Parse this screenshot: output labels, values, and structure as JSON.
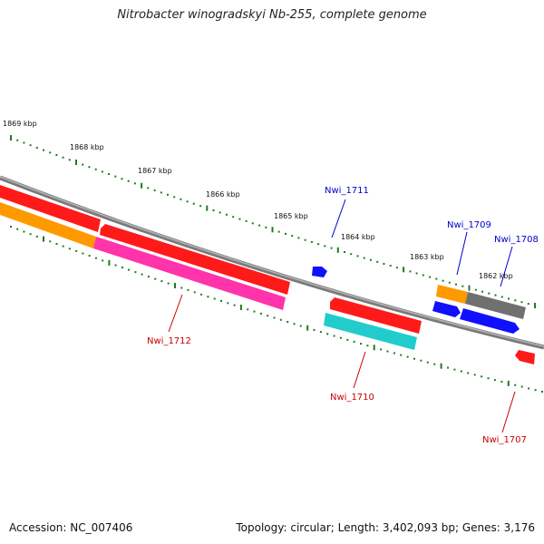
{
  "title": "Nitrobacter winogradskyi Nb-255, complete genome",
  "accession": "Accession: NC_007406",
  "topology": "Topology: circular; Length: 3,402,093 bp; Genes: 3,176",
  "colors": {
    "backbone": "#8a8a8a",
    "ticks": "#1f7a1f",
    "label_forward": "#0000cc",
    "label_reverse": "#cc0000",
    "red": "#ff1a1a",
    "orange": "#ff9900",
    "magenta": "#ff33aa",
    "cyan": "#22cccc",
    "blue": "#1010ff",
    "gray": "#707070"
  },
  "kbp_labels": [
    "1869 kbp",
    "1868 kbp",
    "1867 kbp",
    "1866 kbp",
    "1865 kbp",
    "1864 kbp",
    "1863 kbp",
    "1862 kbp"
  ],
  "gene_labels": [
    {
      "id": "nwi1711",
      "text": "Nwi_1711",
      "strand": "forward"
    },
    {
      "id": "nwi1709",
      "text": "Nwi_1709",
      "strand": "forward"
    },
    {
      "id": "nwi1708",
      "text": "Nwi_1708",
      "strand": "forward"
    },
    {
      "id": "nwi1712",
      "text": "Nwi_1712",
      "strand": "reverse"
    },
    {
      "id": "nwi1710",
      "text": "Nwi_1710",
      "strand": "reverse"
    },
    {
      "id": "nwi1707",
      "text": "Nwi_1707",
      "strand": "reverse"
    }
  ]
}
